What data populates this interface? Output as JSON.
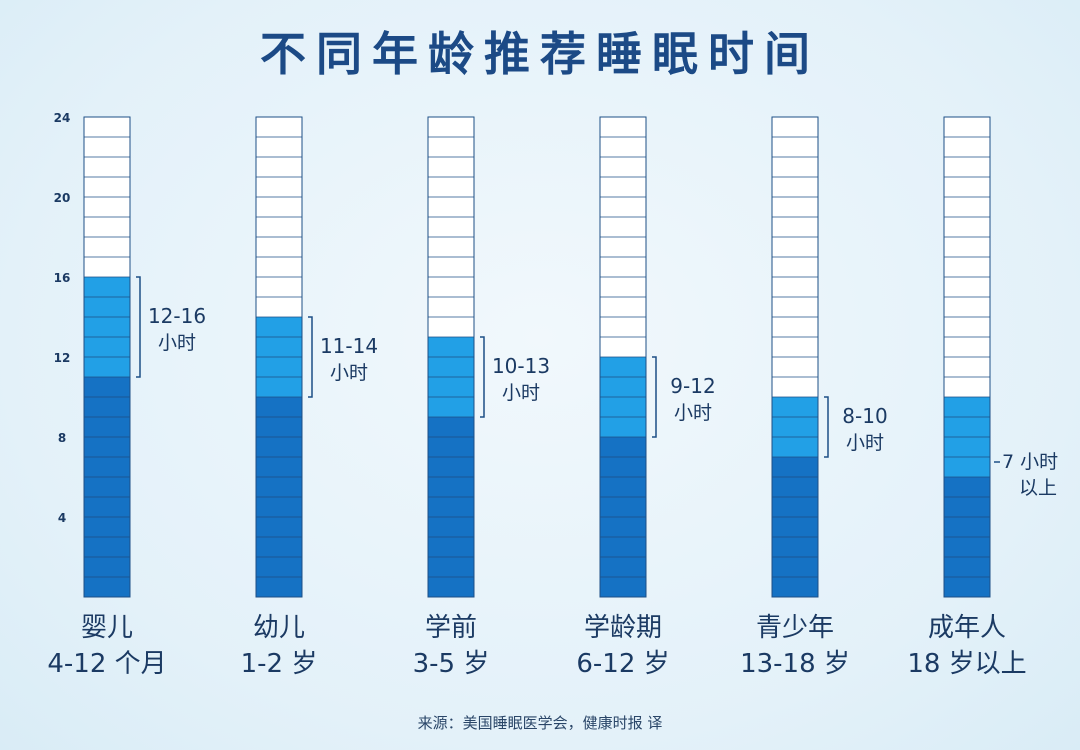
{
  "title": "不同年龄推荐睡眠时间",
  "source": "来源：美国睡眠医学会，健康时报 译",
  "colors": {
    "base": "#1572c4",
    "range": "#22a0e6",
    "empty": "#ffffff",
    "line": "#1d4f86",
    "text": "#1b3a63"
  },
  "chart_data": {
    "type": "bar",
    "ylim": [
      0,
      24
    ],
    "yticks": [
      "4",
      "8",
      "12",
      "16",
      "20",
      "24"
    ],
    "ytick_values": [
      4,
      8,
      12,
      16,
      20,
      24
    ],
    "grid_step": 1,
    "categories": [
      {
        "name": "婴儿",
        "sub": "4-12 个月",
        "min": 11,
        "max": 16,
        "range_label": "12-16",
        "unit_label": "小时"
      },
      {
        "name": "幼儿",
        "sub": "1-2 岁",
        "min": 10,
        "max": 14,
        "range_label": "11-14",
        "unit_label": "小时"
      },
      {
        "name": "学前",
        "sub": "3-5 岁",
        "min": 9,
        "max": 13,
        "range_label": "10-13",
        "unit_label": "小时"
      },
      {
        "name": "学龄期",
        "sub": "6-12 岁",
        "min": 8,
        "max": 12,
        "range_label": "9-12",
        "unit_label": "小时"
      },
      {
        "name": "青少年",
        "sub": "13-18 岁",
        "min": 7,
        "max": 10,
        "range_label": "8-10",
        "unit_label": "小时"
      },
      {
        "name": "成年人",
        "sub": "18 岁以上",
        "min": 6,
        "max": 10,
        "range_label": "7 小时",
        "unit_label": "以上",
        "open_ended": true
      }
    ]
  }
}
